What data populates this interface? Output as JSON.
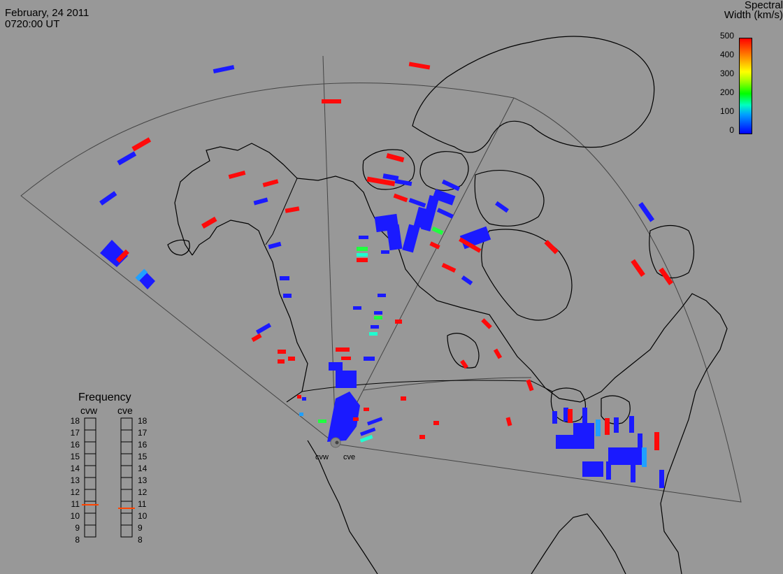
{
  "header": {
    "date": "February, 24 2011",
    "time": "0720:00 UT"
  },
  "colorbar": {
    "title_line1": "Spectral",
    "title_line2": "Width (km/s)",
    "ticks": [
      "500",
      "400",
      "300",
      "200",
      "100",
      "0"
    ],
    "colors": [
      "#0000ff",
      "#00a0ff",
      "#00ffc0",
      "#00ff00",
      "#ffff00",
      "#ffa000",
      "#ff0000"
    ]
  },
  "frequency": {
    "title": "Frequency",
    "radars": [
      {
        "label": "cvw",
        "selected": 11
      },
      {
        "label": "cve",
        "selected": 11
      }
    ],
    "scale": [
      "18",
      "17",
      "16",
      "15",
      "14",
      "13",
      "12",
      "11",
      "10",
      "9",
      "8"
    ]
  },
  "stations": {
    "cvw": "cvw",
    "cve": "cve"
  },
  "colors": {
    "background": "#989898",
    "low": "#1a1aff",
    "mid": "#1aa0ff",
    "green": "#20ff40",
    "cyan": "#20ffd0",
    "high": "#ff0a0a",
    "selected_freq": "#ff4400"
  }
}
